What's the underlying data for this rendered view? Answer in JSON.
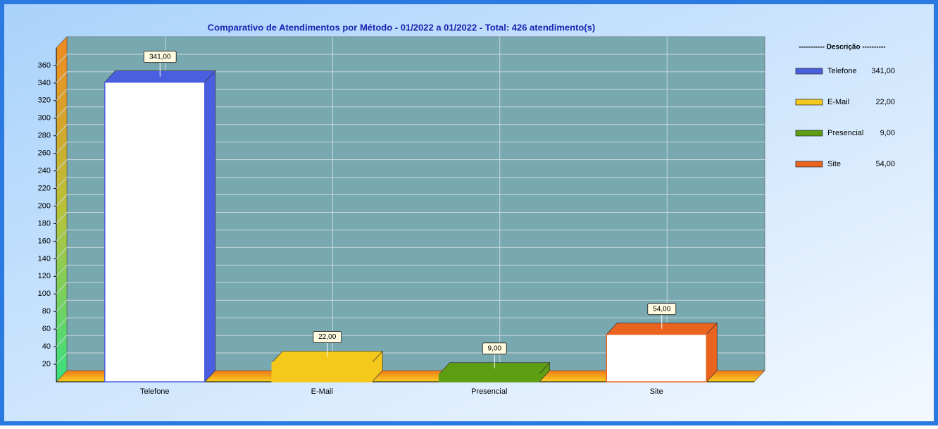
{
  "chart_data": {
    "type": "bar3d",
    "title": "Comparativo de Atendimentos por Método - 01/2022 a 01/2022 - Total: 426 atendimento(s)",
    "categories": [
      "Telefone",
      "E-Mail",
      "Presencial",
      "Site"
    ],
    "values": [
      341,
      22,
      9,
      54
    ],
    "value_labels": [
      "341,00",
      "22,00",
      "9,00",
      "54,00"
    ],
    "colors": [
      "#4a5ee0",
      "#f5c81c",
      "#5e9e12",
      "#ea6420"
    ],
    "face_colors": [
      "#ffffff",
      "#f5c81c",
      "#5e9e12",
      "#ffffff"
    ],
    "ylim": [
      0,
      380
    ],
    "yticks": [
      20,
      40,
      60,
      80,
      100,
      120,
      140,
      160,
      180,
      200,
      220,
      240,
      260,
      280,
      300,
      320,
      340,
      360
    ],
    "grid": true,
    "legend_title": "----------- Descrição ----------",
    "legend": "right"
  }
}
